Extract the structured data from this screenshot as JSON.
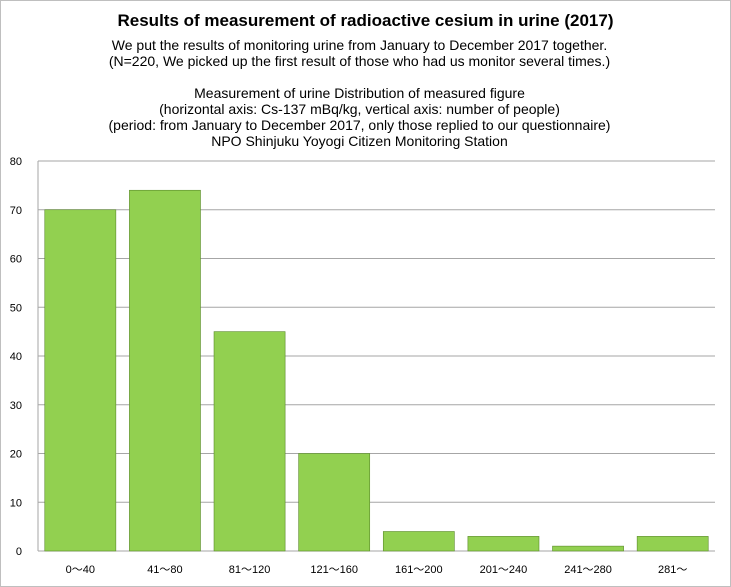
{
  "title": "Results of measurement of radioactive cesium in urine (2017)",
  "subtitle_lines": [
    "We put the results of monitoring urine from January to December 2017 together.",
    "(N=220, We picked up the first result of those who had us monitor several times.)",
    "Measurement of urine  Distribution of measured figure",
    "(horizontal axis: Cs-137 mBq/kg, vertical axis: number of people)",
    "(period: from January to December 2017, only those replied to our questionnaire)",
    "NPO Shinjuku Yoyogi Citizen Monitoring Station"
  ],
  "colors": {
    "bar": "#92d050",
    "bar_stroke": "#5a8a2a",
    "grid": "#a6a6a6"
  },
  "chart_data": {
    "type": "bar",
    "title": "Results of measurement of radioactive cesium in urine (2017)",
    "categories": [
      "0～40",
      "41～80",
      "81～120",
      "121～160",
      "161～200",
      "201～240",
      "241～280",
      "281～"
    ],
    "values": [
      70,
      74,
      45,
      20,
      4,
      3,
      1,
      3
    ],
    "ylim": [
      0,
      80
    ],
    "yticks": [
      0,
      10,
      20,
      30,
      40,
      50,
      60,
      70,
      80
    ],
    "xlabel": "",
    "ylabel": "",
    "grid": true,
    "legend": "none"
  }
}
